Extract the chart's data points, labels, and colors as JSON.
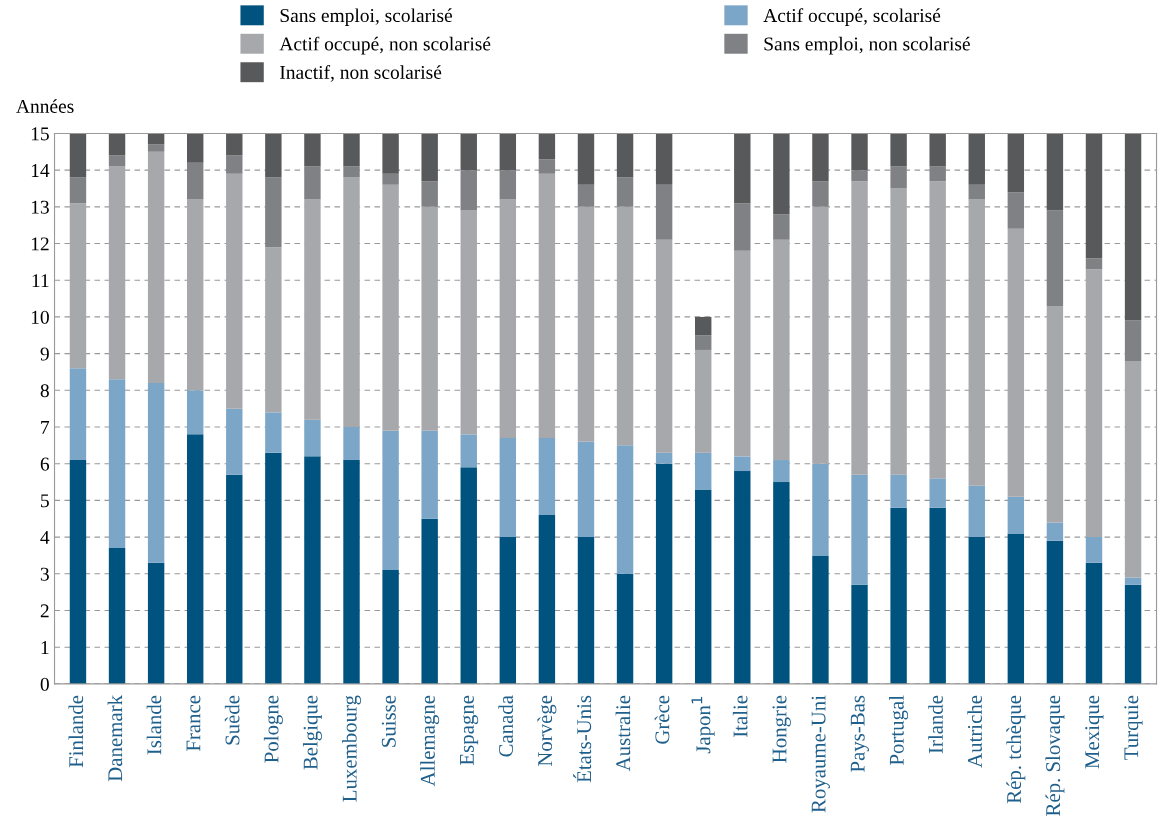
{
  "chart_data": {
    "type": "bar",
    "stacked": true,
    "ylabel": "Années",
    "categories": [
      "Finlande",
      "Danemark",
      "Islande",
      "France",
      "Suède",
      "Pologne",
      "Belgique",
      "Luxembourg",
      "Suisse",
      "Allemagne",
      "Espagne",
      "Canada",
      "Norvège",
      "États-Unis",
      "Australie",
      "Grèce",
      "Japon$^{1}$",
      "Italie",
      "Hongrie",
      "Royaume-Uni",
      "Pays-Bas",
      "Portugal",
      "Irlande",
      "Autriche",
      "Rép. tchèque",
      "Rép. Slovaque",
      "Mexique",
      "Turquie"
    ],
    "series": [
      {
        "name": "Sans emploi, scolarisé",
        "color": "#00537f",
        "values": [
          6.1,
          3.7,
          3.3,
          6.8,
          5.7,
          6.3,
          6.2,
          6.1,
          3.1,
          4.5,
          5.9,
          4.0,
          4.6,
          4.0,
          3.0,
          6.0,
          5.3,
          5.8,
          5.5,
          3.5,
          2.7,
          4.8,
          4.8,
          4.0,
          4.1,
          3.9,
          3.3,
          2.7
        ]
      },
      {
        "name": "Actif occupé, scolarisé",
        "color": "#7ba6c8",
        "values": [
          2.5,
          4.6,
          4.9,
          1.2,
          1.8,
          1.1,
          1.0,
          0.9,
          3.8,
          2.4,
          0.9,
          2.7,
          2.1,
          2.6,
          3.5,
          0.3,
          1.0,
          0.4,
          0.6,
          2.5,
          3.0,
          0.9,
          0.8,
          1.4,
          1.0,
          0.5,
          0.7,
          0.2
        ]
      },
      {
        "name": "Actif occupé, non scolarisé",
        "color": "#a7a8ac",
        "values": [
          4.5,
          5.8,
          6.3,
          5.2,
          6.4,
          4.5,
          6.0,
          6.8,
          6.7,
          6.1,
          6.1,
          6.5,
          7.2,
          6.4,
          6.5,
          5.8,
          2.8,
          5.6,
          6.0,
          7.0,
          8.0,
          7.8,
          8.1,
          7.8,
          7.3,
          5.9,
          7.3,
          5.9
        ]
      },
      {
        "name": "Sans emploi, non scolarisé",
        "color": "#808185",
        "values": [
          0.7,
          0.3,
          0.2,
          1.0,
          0.5,
          1.9,
          0.9,
          0.3,
          0.3,
          0.7,
          1.1,
          0.8,
          0.4,
          0.6,
          0.8,
          1.5,
          0.4,
          1.3,
          0.7,
          0.7,
          0.3,
          0.6,
          0.4,
          0.4,
          1.0,
          2.6,
          0.3,
          1.1
        ]
      },
      {
        "name": "Inactif, non scolarisé",
        "color": "#58595b",
        "values": [
          1.2,
          0.6,
          0.3,
          0.8,
          0.6,
          1.2,
          0.9,
          0.9,
          1.1,
          1.3,
          1.0,
          1.0,
          0.7,
          1.4,
          1.2,
          1.4,
          0.5,
          1.9,
          2.2,
          1.3,
          1.0,
          0.9,
          0.9,
          1.4,
          1.6,
          2.1,
          3.4,
          5.1
        ]
      }
    ],
    "ylim": [
      0,
      15
    ],
    "yticks": [
      0,
      1,
      2,
      3,
      4,
      5,
      6,
      7,
      8,
      9,
      10,
      11,
      12,
      13,
      14,
      15
    ],
    "grid": "y",
    "legend": "top"
  }
}
